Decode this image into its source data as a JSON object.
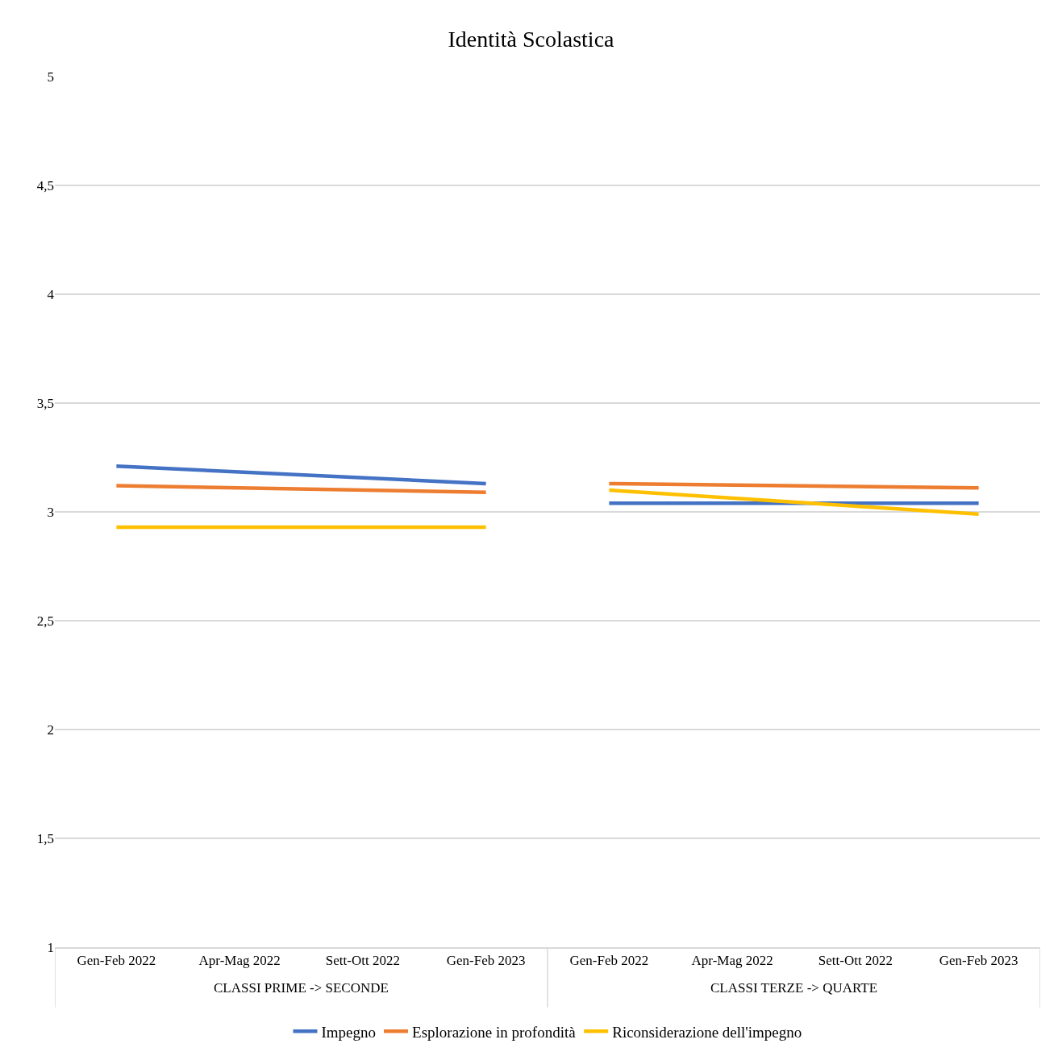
{
  "chart_data": {
    "type": "line",
    "title": "Identità Scolastica",
    "categories": [
      "Gen-Feb 2022",
      "Apr-Mag 2022",
      "Sett-Ott 2022",
      "Gen-Feb 2023",
      "Gen-Feb 2022",
      "Apr-Mag 2022",
      "Sett-Ott 2022",
      "Gen-Feb 2023"
    ],
    "series": [
      {
        "name": "Impegno",
        "color": "#4472c4",
        "values": [
          3.21,
          null,
          null,
          3.13,
          3.04,
          null,
          null,
          3.04
        ]
      },
      {
        "name": "Esplorazione in profondità",
        "color": "#ed7d31",
        "values": [
          3.12,
          null,
          null,
          3.09,
          3.13,
          null,
          null,
          3.11
        ]
      },
      {
        "name": "Riconsiderazione dell'impegno",
        "color": "#ffc000",
        "values": [
          2.93,
          null,
          null,
          2.93,
          3.1,
          null,
          null,
          2.99
        ]
      }
    ],
    "annotations": [
      "CLASSI PRIME -> SECONDE",
      "CLASSI TERZE -> QUARTE"
    ],
    "ylim": [
      1,
      5
    ],
    "yticks": [
      1,
      {
        "value": 1.5,
        "label": "1,5"
      },
      2,
      {
        "value": 2.5,
        "label": "2,5"
      },
      3,
      {
        "value": 3.5,
        "label": "3,5"
      },
      4,
      {
        "value": 4.5,
        "label": "4,5"
      },
      5
    ],
    "grid": "y",
    "legend": "bottom",
    "marker": "none",
    "line_style": "solid"
  }
}
